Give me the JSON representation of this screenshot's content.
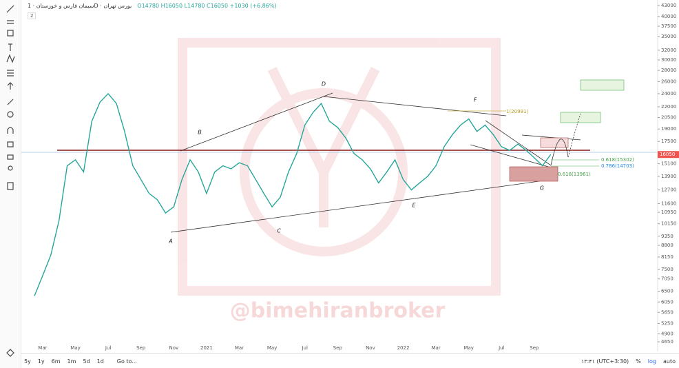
{
  "header": {
    "symbol": "سیمان فارس و خوزستان · 1D · بورس تهران",
    "ohlc": "O14780 H16050 L14780 C16050 +1030 (+6.86%)",
    "indicator_count": "2"
  },
  "chart_data": {
    "type": "line",
    "categories": [
      null,
      "Mar",
      null,
      null,
      null,
      "May",
      null,
      null,
      null,
      "Jul",
      null,
      null,
      null,
      "Sep",
      null,
      null,
      null,
      "Nov",
      null,
      null,
      null,
      "2021",
      null,
      null,
      null,
      "Mar",
      null,
      null,
      null,
      "May",
      null,
      null,
      null,
      "Jul",
      null,
      null,
      null,
      "Sep",
      null,
      null,
      null,
      "Nov",
      null,
      null,
      null,
      "2022",
      null,
      null,
      null,
      "Mar",
      null,
      null,
      null,
      "May",
      null,
      null,
      null,
      "Jul",
      null,
      null,
      null,
      "Sep",
      null,
      null
    ],
    "values": [
      6300,
      7200,
      8250,
      10370,
      14900,
      15500,
      14300,
      20000,
      22700,
      24000,
      22500,
      18700,
      14900,
      13600,
      12400,
      11900,
      10900,
      11350,
      13600,
      15500,
      14300,
      12400,
      14300,
      14900,
      14600,
      15200,
      14900,
      13600,
      12400,
      11350,
      12100,
      14300,
      16150,
      19500,
      21200,
      22500,
      20000,
      19200,
      17900,
      16150,
      15500,
      14600,
      13300,
      14300,
      15500,
      13600,
      12700,
      13300,
      13900,
      14900,
      16900,
      18300,
      19500,
      20300,
      18700,
      19500,
      18300,
      16900,
      16500,
      17200,
      16500,
      15700,
      14900,
      16050
    ],
    "color": "#26a69a",
    "ylim": [
      4650,
      43000
    ],
    "yticks": [
      43000,
      40000,
      37500,
      35000,
      32000,
      30000,
      28000,
      26000,
      24000,
      22000,
      20500,
      19000,
      17500,
      15100,
      13900,
      12700,
      11600,
      10950,
      10150,
      9350,
      8800,
      8150,
      7500,
      7050,
      6500,
      6050,
      5650,
      5250,
      4900,
      4650
    ],
    "log_scale": true,
    "annotations": [
      "A",
      "B",
      "C",
      "D",
      "E",
      "F",
      "G",
      "1(20991)",
      "0.618(15302)",
      "0.786(14703)",
      "0.618(13961)"
    ],
    "watermark": "@bimehiranbroker"
  },
  "footer": {
    "ranges": [
      "5y",
      "1y",
      "6m",
      "1m",
      "5d",
      "1d"
    ],
    "goto": "Go to...",
    "time": "۱۳:۴۱ (UTC+3:30)",
    "options": [
      "%",
      "log",
      "auto"
    ]
  }
}
